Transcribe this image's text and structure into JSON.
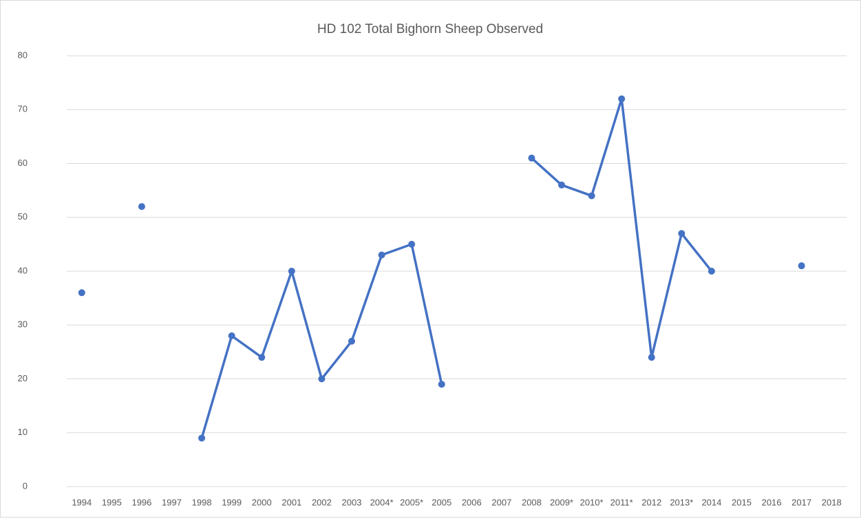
{
  "chart_data": {
    "type": "line",
    "title": "HD 102 Total Bighorn Sheep Observed",
    "categories": [
      "1994",
      "1995",
      "1996",
      "1997",
      "1998",
      "1999",
      "2000",
      "2001",
      "2002",
      "2003",
      "2004*",
      "2005*",
      "2005",
      "2006",
      "2007",
      "2008",
      "2009*",
      "2010*",
      "2011*",
      "2012",
      "2013*",
      "2014",
      "2015",
      "2016",
      "2017",
      "2018"
    ],
    "values": [
      36,
      null,
      52,
      null,
      9,
      28,
      24,
      40,
      20,
      27,
      43,
      45,
      19,
      null,
      null,
      61,
      56,
      54,
      72,
      24,
      47,
      40,
      null,
      null,
      41,
      null
    ],
    "color": "#4472c4",
    "ylim": [
      0,
      80
    ],
    "yticks": [
      0,
      10,
      20,
      30,
      40,
      50,
      60,
      70,
      80
    ],
    "grid": true
  }
}
